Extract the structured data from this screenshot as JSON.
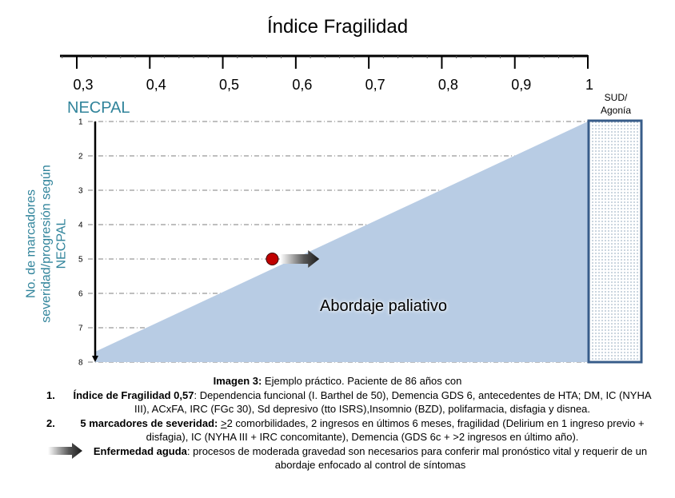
{
  "chart_data": {
    "type": "diagram",
    "title": "Índice Fragilidad",
    "x_axis": {
      "label": "Índice Fragilidad",
      "ticks": [
        "0,3",
        "0,4",
        "0,5",
        "0,6",
        "0,7",
        "0,8",
        "0,9",
        "1"
      ],
      "tick_values": [
        0.3,
        0.4,
        0.5,
        0.6,
        0.7,
        0.8,
        0.9,
        1.0
      ],
      "range": [
        0.28,
        1.0
      ],
      "minor_ticks_per_interval": 5,
      "position": "top"
    },
    "y_axis": {
      "label": "No. de marcadores severidad/progresión según NECPAL",
      "header": "NECPAL",
      "ticks": [
        "1",
        "2",
        "3",
        "4",
        "5",
        "6",
        "7",
        "8"
      ],
      "tick_values": [
        1,
        2,
        3,
        4,
        5,
        6,
        7,
        8
      ],
      "range": [
        1,
        8
      ],
      "direction": "downward",
      "grid": "dash-dot"
    },
    "regions": [
      {
        "name": "Abordaje paliativo",
        "shape": "triangle",
        "vertices": [
          [
            0.325,
            7.7
          ],
          [
            1.0,
            1
          ],
          [
            1.0,
            8
          ],
          [
            0.325,
            8
          ]
        ],
        "color": "#b8cce4"
      },
      {
        "name": "SUD/ Agonía",
        "label_lines": [
          "SUD/",
          "Agonía"
        ],
        "shape": "rect",
        "pattern": "dotted",
        "border_color": "#385d8a",
        "x_from": 1.0,
        "y_range": [
          1,
          8
        ]
      }
    ],
    "points": [
      {
        "name": "Paciente",
        "x": 0.57,
        "y": 5,
        "color": "#c00000"
      }
    ],
    "arrows": [
      {
        "name": "Enfermedad aguda",
        "from": [
          0.57,
          5
        ],
        "to": [
          0.63,
          5
        ],
        "color": "#262626"
      }
    ]
  },
  "caption": {
    "intro_bold": "Imagen 3:",
    "intro_text": " Ejemplo práctico. Paciente de 86 años con",
    "items": [
      {
        "num": "1.",
        "bold": "Índice de Fragilidad 0,57",
        "text": ": Dependencia funcional (I. Barthel de 50), Demencia GDS 6, antecedentes de HTA; DM, IC (NYHA III), ACxFA, IRC (FGc 30), Sd depresivo (tto ISRS),Insomnio (BZD), polifarmacia, disfagia y disnea."
      },
      {
        "num": "2.",
        "bold": "5 marcadores de severidad:",
        "text_prefix": " ",
        "underlined": ">",
        "text": "2 comorbilidades, 2 ingresos en últimos 6 meses, fragilidad (Delirium en 1 ingreso previo + disfagia), IC (NYHA III + IRC concomitante),  Demencia (GDS 6c + >2 ingresos en último año)."
      }
    ],
    "acute": {
      "icon": "arrow-right-icon",
      "bold": "Enfermedad aguda",
      "text": ": procesos de moderada  gravedad son necesarios para conferir mal pronóstico vital y requerir de un abordaje enfocado al control de síntomas"
    }
  }
}
